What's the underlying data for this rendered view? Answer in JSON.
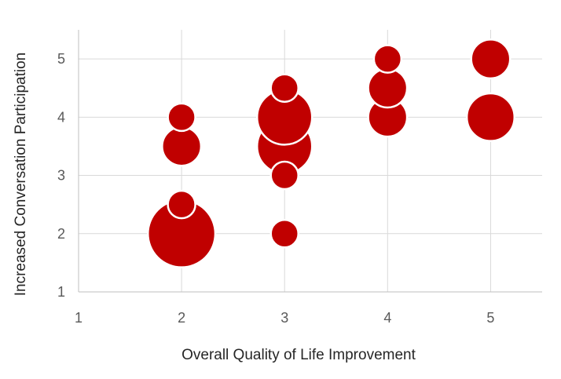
{
  "chart_data": {
    "type": "scatter",
    "subtype": "bubble",
    "title": "",
    "xlabel": "Overall Quality of Life Improvement",
    "ylabel": "Increased Conversation Participation",
    "xlim": [
      1,
      5.5
    ],
    "ylim": [
      1,
      5.5
    ],
    "xticks": [
      "1",
      "2",
      "3",
      "4",
      "5"
    ],
    "yticks": [
      "1",
      "2",
      "3",
      "4",
      "5"
    ],
    "grid": true,
    "legend": "none",
    "bubble_color": "#c00000",
    "bubble_edge_color": "#ffffff",
    "points": [
      {
        "x": 2,
        "y": 2,
        "size": 6
      },
      {
        "x": 2,
        "y": 2.5,
        "size": 1
      },
      {
        "x": 2,
        "y": 3.5,
        "size": 2
      },
      {
        "x": 2,
        "y": 4,
        "size": 1
      },
      {
        "x": 3,
        "y": 2,
        "size": 1
      },
      {
        "x": 3,
        "y": 3,
        "size": 1
      },
      {
        "x": 3,
        "y": 3.5,
        "size": 4
      },
      {
        "x": 3,
        "y": 4,
        "size": 4
      },
      {
        "x": 3,
        "y": 4.5,
        "size": 1
      },
      {
        "x": 4,
        "y": 4,
        "size": 2
      },
      {
        "x": 4,
        "y": 4.5,
        "size": 2
      },
      {
        "x": 4,
        "y": 5,
        "size": 1
      },
      {
        "x": 5,
        "y": 4,
        "size": 3
      },
      {
        "x": 5,
        "y": 5,
        "size": 2
      }
    ]
  }
}
